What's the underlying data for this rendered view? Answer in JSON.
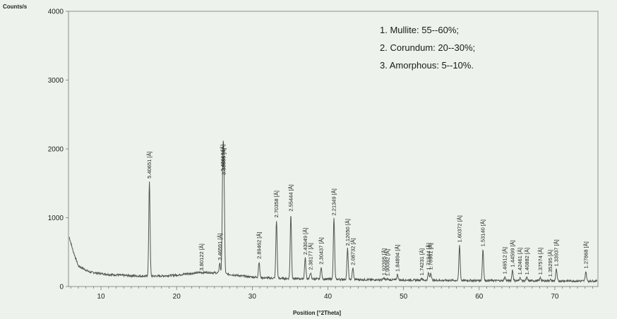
{
  "chart_data": {
    "type": "line",
    "ylabel": "Counts/s",
    "xlabel": "Position [°2Theta]",
    "xlim": [
      5.7,
      75.7
    ],
    "ylim": [
      0,
      4000
    ],
    "x_ticks": [
      10,
      20,
      30,
      40,
      50,
      60,
      70
    ],
    "y_ticks": [
      0,
      1000,
      2000,
      3000,
      4000
    ],
    "grid": false,
    "legend_position": "top-right",
    "legend": [
      "1. Mullite: 55--60%;",
      "2. Corundum: 20--30%;",
      "3. Amorphous: 5--10%."
    ],
    "baseline": [
      {
        "x": 5.8,
        "y": 720
      },
      {
        "x": 6.3,
        "y": 520
      },
      {
        "x": 7.0,
        "y": 300
      },
      {
        "x": 8.5,
        "y": 210
      },
      {
        "x": 11.0,
        "y": 175
      },
      {
        "x": 15.0,
        "y": 150
      },
      {
        "x": 20.0,
        "y": 130
      },
      {
        "x": 24.0,
        "y": 135
      },
      {
        "x": 28.0,
        "y": 125
      },
      {
        "x": 35.0,
        "y": 115
      },
      {
        "x": 45.0,
        "y": 100
      },
      {
        "x": 55.0,
        "y": 90
      },
      {
        "x": 65.0,
        "y": 85
      },
      {
        "x": 75.5,
        "y": 80
      }
    ],
    "peaks": [
      {
        "x": 16.4,
        "y": 1530,
        "label": "5.40651 [Å]"
      },
      {
        "x": 23.3,
        "y": 190,
        "label": "3.80122 [Å]"
      },
      {
        "x": 25.7,
        "y": 340,
        "label": "3.46591 [Å]"
      },
      {
        "x": 26.1,
        "y": 1630,
        "label": "3.42619 [Å]"
      },
      {
        "x": 26.25,
        "y": 1580,
        "label": "3.38565 [Å]"
      },
      {
        "x": 30.9,
        "y": 360,
        "label": "2.89462 [Å]"
      },
      {
        "x": 33.2,
        "y": 960,
        "label": "2.70358 [Å]"
      },
      {
        "x": 35.1,
        "y": 1050,
        "label": "2.55444 [Å]"
      },
      {
        "x": 37.0,
        "y": 420,
        "label": "2.43049 [Å]"
      },
      {
        "x": 37.7,
        "y": 200,
        "label": "2.38177 [Å]"
      },
      {
        "x": 39.1,
        "y": 280,
        "label": "2.30437 [Å]"
      },
      {
        "x": 40.8,
        "y": 990,
        "label": "2.21349 [Å]"
      },
      {
        "x": 42.6,
        "y": 550,
        "label": "2.12050 [Å]"
      },
      {
        "x": 43.3,
        "y": 270,
        "label": "2.08732 [Å]"
      },
      {
        "x": 47.4,
        "y": 120,
        "label": "1.92395 [Å]"
      },
      {
        "x": 47.9,
        "y": 110,
        "label": "1.90082 [Å]"
      },
      {
        "x": 49.2,
        "y": 175,
        "label": "1.84894 [Å]"
      },
      {
        "x": 52.4,
        "y": 120,
        "label": "1.74231 [Å]"
      },
      {
        "x": 53.3,
        "y": 200,
        "label": "1.71944 [Å]"
      },
      {
        "x": 53.6,
        "y": 200,
        "label": "1.70961 [Å]"
      },
      {
        "x": 57.4,
        "y": 600,
        "label": "1.60372 [Å]"
      },
      {
        "x": 60.5,
        "y": 540,
        "label": "1.53140 [Å]"
      },
      {
        "x": 63.4,
        "y": 140,
        "label": "1.46512 [Å]"
      },
      {
        "x": 64.4,
        "y": 240,
        "label": "1.44599 [Å]"
      },
      {
        "x": 65.4,
        "y": 130,
        "label": "1.42461 [Å]"
      },
      {
        "x": 66.3,
        "y": 130,
        "label": "1.40882 [Å]"
      },
      {
        "x": 68.1,
        "y": 130,
        "label": "1.37574 [Å]"
      },
      {
        "x": 69.4,
        "y": 100,
        "label": "1.35295 [Å]"
      },
      {
        "x": 70.2,
        "y": 250,
        "label": "1.33937 [Å]"
      },
      {
        "x": 74.1,
        "y": 220,
        "label": "1.27868 [Å]"
      }
    ]
  }
}
